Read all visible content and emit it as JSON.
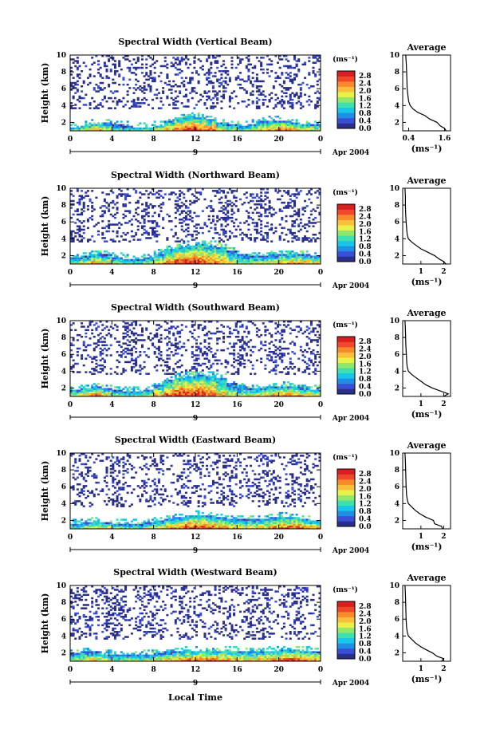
{
  "figure": {
    "x_axis_label": "Local Time",
    "date_label": "Apr 2004",
    "day_label": "9",
    "colorbar_units": "(ms⁻¹)",
    "colorbar_ticks": [
      "0.0",
      "0.4",
      "0.8",
      "1.2",
      "1.6",
      "2.0",
      "2.4",
      "2.8"
    ],
    "colorbar_colors": [
      "#2b2f8c",
      "#3a4fd6",
      "#1f8fe6",
      "#17c6e8",
      "#3fe0b0",
      "#8fe86a",
      "#e8f04a",
      "#f8c03a",
      "#f88a2a",
      "#f0482a",
      "#d81e1e"
    ],
    "white_background": "#ffffff",
    "low_value_color": "#3a4fd6"
  },
  "chart_data": [
    {
      "type": "heatmap",
      "title": "Spectral Width (Vertical Beam)",
      "ylabel": "Height (km)",
      "xlabel": "Local Time",
      "x_ticks": [
        "0",
        "4",
        "8",
        "12",
        "16",
        "20",
        "0"
      ],
      "y_ticks": [
        "2",
        "4",
        "6",
        "8",
        "10"
      ],
      "xlim": [
        0,
        24
      ],
      "ylim": [
        1,
        10
      ],
      "colorbar_range": [
        0.0,
        2.8
      ],
      "seed": 11,
      "low_layer_top": [
        1.5,
        1.7,
        1.9,
        2.0,
        1.8,
        1.6,
        1.5,
        1.5,
        1.7,
        2.2,
        2.6,
        2.8,
        2.7,
        2.4,
        2.0,
        1.8,
        1.6,
        1.9,
        2.2,
        2.3,
        2.2,
        2.0,
        1.9,
        1.8
      ],
      "peak_width": [
        1.6,
        1.8,
        2.2,
        1.8,
        1.4,
        1.3,
        1.3,
        1.5,
        1.8,
        2.2,
        2.5,
        2.7,
        2.6,
        2.4,
        2.0,
        1.6,
        1.5,
        1.7,
        2.0,
        2.2,
        2.4,
        2.3,
        2.0,
        1.8
      ],
      "profile": {
        "title": "Average",
        "xlabel": "(ms⁻¹)",
        "x_ticks": [
          "0.4",
          "1.6"
        ],
        "xlim": [
          0.2,
          1.8
        ],
        "heights": [
          1.0,
          1.3,
          1.6,
          2.0,
          2.4,
          2.8,
          3.2,
          3.6,
          4.0,
          4.5,
          5.0,
          6.0,
          7.0,
          8.0,
          9.0,
          10.0
        ],
        "values": [
          1.65,
          1.6,
          1.45,
          1.35,
          1.1,
          0.95,
          0.7,
          0.55,
          0.45,
          0.4,
          0.38,
          0.35,
          0.34,
          0.33,
          0.32,
          0.3
        ]
      }
    },
    {
      "type": "heatmap",
      "title": "Spectral Width (Northward Beam)",
      "ylabel": "Height (km)",
      "xlabel": "Local Time",
      "x_ticks": [
        "0",
        "4",
        "8",
        "12",
        "16",
        "20",
        "0"
      ],
      "y_ticks": [
        "2",
        "4",
        "6",
        "8",
        "10"
      ],
      "xlim": [
        0,
        24
      ],
      "ylim": [
        1,
        10
      ],
      "colorbar_range": [
        0.0,
        2.8
      ],
      "seed": 23,
      "low_layer_top": [
        1.8,
        2.0,
        2.2,
        2.1,
        1.9,
        1.7,
        1.6,
        1.8,
        2.3,
        2.8,
        3.1,
        3.3,
        3.4,
        3.3,
        3.1,
        2.6,
        2.2,
        2.0,
        2.0,
        2.1,
        2.2,
        2.2,
        2.1,
        2.0
      ],
      "peak_width": [
        1.6,
        1.8,
        2.3,
        2.0,
        1.6,
        1.4,
        1.4,
        1.6,
        2.0,
        2.4,
        2.7,
        2.8,
        2.7,
        2.5,
        2.2,
        1.8,
        1.6,
        1.6,
        1.8,
        2.0,
        2.2,
        2.3,
        2.3,
        2.1
      ],
      "profile": {
        "title": "Average",
        "xlabel": "(ms⁻¹)",
        "x_ticks": [
          "1",
          "2"
        ],
        "xlim": [
          0.2,
          2.3
        ],
        "heights": [
          1.0,
          1.3,
          1.6,
          2.0,
          2.4,
          2.8,
          3.2,
          3.6,
          4.0,
          4.5,
          5.0,
          6.0,
          7.0,
          8.0,
          9.0,
          10.0
        ],
        "values": [
          2.1,
          2.0,
          1.8,
          1.6,
          1.3,
          1.0,
          0.8,
          0.6,
          0.45,
          0.4,
          0.38,
          0.35,
          0.33,
          0.32,
          0.32,
          0.3
        ]
      }
    },
    {
      "type": "heatmap",
      "title": "Spectral Width (Southward Beam)",
      "ylabel": "Height (km)",
      "xlabel": "Local Time",
      "x_ticks": [
        "0",
        "4",
        "8",
        "12",
        "16",
        "20",
        "0"
      ],
      "y_ticks": [
        "2",
        "4",
        "6",
        "8",
        "10"
      ],
      "xlim": [
        0,
        24
      ],
      "ylim": [
        1,
        10
      ],
      "colorbar_range": [
        0.0,
        2.8
      ],
      "seed": 37,
      "low_layer_top": [
        1.8,
        2.0,
        2.1,
        2.0,
        1.8,
        1.7,
        1.7,
        1.9,
        2.4,
        3.0,
        3.3,
        3.5,
        3.6,
        3.5,
        3.2,
        2.6,
        2.2,
        2.0,
        2.0,
        2.1,
        2.3,
        2.2,
        2.0,
        1.9
      ],
      "peak_width": [
        1.8,
        2.2,
        2.5,
        2.0,
        1.6,
        1.4,
        1.5,
        1.7,
        2.1,
        2.5,
        2.8,
        2.8,
        2.7,
        2.5,
        2.1,
        1.7,
        1.6,
        1.8,
        2.0,
        2.2,
        2.3,
        2.4,
        2.2,
        2.0
      ],
      "profile": {
        "title": "Average",
        "xlabel": "(ms⁻¹)",
        "x_ticks": [
          "1",
          "2"
        ],
        "xlim": [
          0.2,
          2.3
        ],
        "heights": [
          1.0,
          1.3,
          1.6,
          2.0,
          2.4,
          2.8,
          3.2,
          3.6,
          4.0,
          4.5,
          5.0,
          6.0,
          7.0,
          8.0,
          9.0,
          10.0
        ],
        "values": [
          2.0,
          2.2,
          1.9,
          1.5,
          1.2,
          1.0,
          0.8,
          0.6,
          0.45,
          0.4,
          0.38,
          0.36,
          0.34,
          0.33,
          0.32,
          0.3
        ]
      }
    },
    {
      "type": "heatmap",
      "title": "Spectral Width (Eastward Beam)",
      "ylabel": "Height (km)",
      "xlabel": "Local Time",
      "x_ticks": [
        "0",
        "4",
        "8",
        "12",
        "16",
        "20",
        "0"
      ],
      "y_ticks": [
        "2",
        "4",
        "6",
        "8",
        "10"
      ],
      "xlim": [
        0,
        24
      ],
      "ylim": [
        1,
        10
      ],
      "colorbar_range": [
        0.0,
        2.8
      ],
      "seed": 51,
      "low_layer_top": [
        1.6,
        1.8,
        1.9,
        1.8,
        1.7,
        1.6,
        1.6,
        1.8,
        2.0,
        2.2,
        2.4,
        2.6,
        2.7,
        2.6,
        2.4,
        2.2,
        2.1,
        2.1,
        2.2,
        2.4,
        2.5,
        2.4,
        2.2,
        2.0
      ],
      "peak_width": [
        1.6,
        1.8,
        2.0,
        1.8,
        1.6,
        1.5,
        1.5,
        1.6,
        1.9,
        2.2,
        2.4,
        2.6,
        2.6,
        2.5,
        2.3,
        2.1,
        2.0,
        2.0,
        2.1,
        2.3,
        2.5,
        2.6,
        2.4,
        2.2
      ],
      "profile": {
        "title": "Average",
        "xlabel": "(ms⁻¹)",
        "x_ticks": [
          "1",
          "2"
        ],
        "xlim": [
          0.2,
          2.3
        ],
        "heights": [
          1.0,
          1.3,
          1.6,
          2.0,
          2.4,
          2.8,
          3.2,
          3.6,
          4.0,
          4.5,
          5.0,
          6.0,
          7.0,
          8.0,
          9.0,
          10.0
        ],
        "values": [
          1.95,
          1.9,
          1.6,
          1.55,
          1.2,
          0.95,
          0.75,
          0.6,
          0.45,
          0.4,
          0.37,
          0.35,
          0.34,
          0.33,
          0.32,
          0.3
        ]
      }
    },
    {
      "type": "heatmap",
      "title": "Spectral Width (Westward Beam)",
      "ylabel": "Height (km)",
      "xlabel": "Local Time",
      "x_ticks": [
        "0",
        "4",
        "8",
        "12",
        "16",
        "20",
        "0"
      ],
      "y_ticks": [
        "2",
        "4",
        "6",
        "8",
        "10"
      ],
      "xlim": [
        0,
        24
      ],
      "ylim": [
        1,
        10
      ],
      "colorbar_range": [
        0.0,
        2.8
      ],
      "seed": 67,
      "low_layer_top": [
        2.0,
        2.2,
        2.1,
        1.9,
        1.8,
        1.8,
        1.8,
        1.9,
        2.0,
        2.1,
        2.2,
        2.3,
        2.3,
        2.3,
        2.3,
        2.3,
        2.2,
        2.2,
        2.2,
        2.3,
        2.4,
        2.4,
        2.3,
        2.2
      ],
      "peak_width": [
        1.7,
        1.9,
        2.0,
        1.8,
        1.6,
        1.6,
        1.6,
        1.7,
        1.9,
        2.1,
        2.3,
        2.5,
        2.6,
        2.6,
        2.4,
        2.2,
        2.1,
        2.1,
        2.2,
        2.4,
        2.6,
        2.6,
        2.5,
        2.3
      ],
      "profile": {
        "title": "Average",
        "xlabel": "(ms⁻¹)",
        "x_ticks": [
          "1",
          "2"
        ],
        "xlim": [
          0.2,
          2.3
        ],
        "heights": [
          1.0,
          1.3,
          1.6,
          2.0,
          2.4,
          2.8,
          3.2,
          3.6,
          4.0,
          4.5,
          5.0,
          6.0,
          7.0,
          8.0,
          9.0,
          10.0
        ],
        "values": [
          1.9,
          2.0,
          1.7,
          1.5,
          1.2,
          0.95,
          0.75,
          0.6,
          0.45,
          0.4,
          0.37,
          0.35,
          0.34,
          0.33,
          0.32,
          0.3
        ]
      }
    }
  ]
}
